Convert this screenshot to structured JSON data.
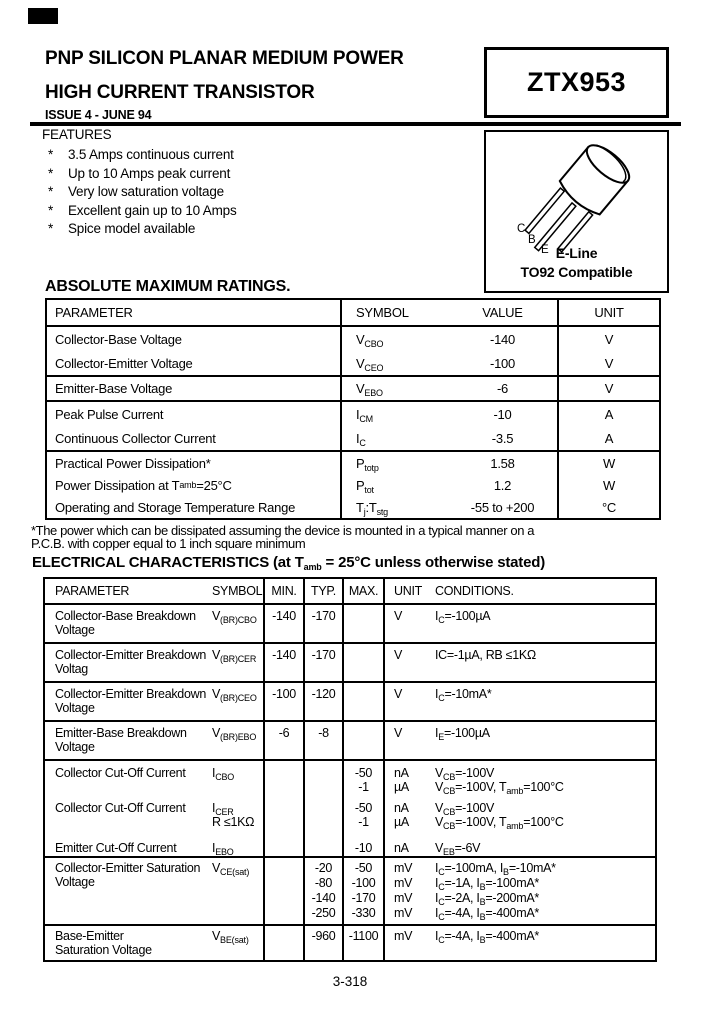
{
  "colors": {
    "ink": "#000000",
    "paper": "#ffffff"
  },
  "header": {
    "title_line1": "PNP SILICON PLANAR MEDIUM POWER",
    "title_line2": "HIGH CURRENT TRANSISTOR",
    "issue": "ISSUE 4 - JUNE 94",
    "part_number": "ZTX953"
  },
  "package_box": {
    "pin_c": "C",
    "pin_b": "B",
    "pin_e": "E",
    "line1": "E-Line",
    "line2": "TO92 Compatible"
  },
  "features": {
    "heading": "FEATURES",
    "bullet": "*",
    "items": [
      "3.5 Amps continuous current",
      "Up to 10 Amps peak current",
      "Very low saturation voltage",
      "Excellent gain up to 10 Amps",
      "Spice model available"
    ]
  },
  "amr": {
    "heading": "ABSOLUTE MAXIMUM RATINGS.",
    "col_parameter": "PARAMETER",
    "col_symbol": "SYMBOL",
    "col_value": "VALUE",
    "col_unit": "UNIT",
    "r1": {
      "param": "Collector-Base Voltage",
      "symbol": [
        "V",
        {
          "s": "CBO"
        }
      ],
      "value": "-140",
      "unit": "V"
    },
    "r2": {
      "param": "Collector-Emitter Voltage",
      "symbol": [
        "V",
        {
          "s": "CEO"
        }
      ],
      "value": "-100",
      "unit": "V"
    },
    "r3": {
      "param": "Emitter-Base Voltage",
      "symbol": [
        "V",
        {
          "s": "EBO"
        }
      ],
      "value": "-6",
      "unit": "V"
    },
    "r4": {
      "param": "Peak Pulse Current",
      "symbol": [
        "I",
        {
          "s": "CM"
        }
      ],
      "value": "-10",
      "unit": "A"
    },
    "r5": {
      "param": "Continuous Collector Current",
      "symbol": [
        "I",
        {
          "s": "C"
        }
      ],
      "value": "-3.5",
      "unit": "A"
    },
    "r6": {
      "param": "Practical Power Dissipation*",
      "symbol": [
        "P",
        {
          "s": "totp"
        }
      ],
      "value": "1.58",
      "unit": "W"
    },
    "r7": {
      "param": [
        "Power Dissipation at T",
        {
          "s": "amb"
        },
        "=25°C"
      ],
      "symbol": [
        "P",
        {
          "s": "tot"
        }
      ],
      "value": "1.2",
      "unit": "W"
    },
    "r8": {
      "param": "Operating and Storage Temperature Range",
      "symbol": [
        "T",
        {
          "s": "j"
        },
        ":T",
        {
          "s": "stg"
        }
      ],
      "value": "-55 to +200",
      "unit": "°C"
    },
    "footnote_line1": "*The power which can be dissipated assuming the device is mounted in a typical manner on a",
    "footnote_line2": "P.C.B. with copper equal to 1 inch square minimum"
  },
  "ec": {
    "heading": [
      "ELECTRICAL CHARACTERISTICS (at T",
      {
        "s": "amb"
      },
      " = 25°C unless otherwise stated)"
    ],
    "col_parameter": "PARAMETER",
    "col_symbol": "SYMBOL",
    "col_min": "MIN.",
    "col_typ": "TYP.",
    "col_max": "MAX.",
    "col_unit": "UNIT",
    "col_conditions": "CONDITIONS.",
    "r1": {
      "param1": "Collector-Base Breakdown",
      "param2": "Voltage",
      "symbol": [
        "V",
        {
          "s": "(BR)CBO"
        }
      ],
      "min": "-140",
      "typ": "-170",
      "max": "",
      "unit": "V",
      "cond": [
        "I",
        {
          "s": "C"
        },
        "=-100µA"
      ]
    },
    "r2": {
      "param1": "Collector-Emitter Breakdown",
      "param2": "Voltag",
      "symbol": [
        "V",
        {
          "s": "(BR)CER"
        }
      ],
      "min": "-140",
      "typ": "-170",
      "max": "",
      "unit": "V",
      "cond": [
        "IC=-1µA, RB ≤1KΩ"
      ]
    },
    "r3": {
      "param1": "Collector-Emitter Breakdown",
      "param2": "Voltage",
      "symbol": [
        "V",
        {
          "s": "(BR)CEO"
        }
      ],
      "min": "-100",
      "typ": "-120",
      "max": "",
      "unit": "V",
      "cond": [
        "I",
        {
          "s": "C"
        },
        "=-10mA*"
      ]
    },
    "r4": {
      "param1": "Emitter-Base Breakdown",
      "param2": "Voltage",
      "symbol": [
        "V",
        {
          "s": "(BR)EBO"
        }
      ],
      "min": "-6",
      "typ": "-8",
      "max": "",
      "unit": "V",
      "cond": [
        "I",
        {
          "s": "E"
        },
        "=-100µA"
      ]
    },
    "r5a": {
      "param": "Collector Cut-Off Current",
      "symbol": [
        "I",
        {
          "s": "CBO"
        }
      ],
      "max1": "-50",
      "max2": "-1",
      "unit1": "nA",
      "unit2": "µA",
      "cond1": [
        "V",
        {
          "s": "CB"
        },
        "=-100V"
      ],
      "cond2": [
        "V",
        {
          "s": "CB"
        },
        "=-100V, T",
        {
          "s": "amb"
        },
        "=100°C"
      ]
    },
    "r5b": {
      "param": "Collector Cut-Off Current",
      "symbol1": [
        "I",
        {
          "s": "CER"
        }
      ],
      "symbol2": "R ≤1KΩ",
      "max1": "-50",
      "max2": "-1",
      "unit1": "nA",
      "unit2": "µA",
      "cond1": [
        "V",
        {
          "s": "CB"
        },
        "=-100V"
      ],
      "cond2": [
        "V",
        {
          "s": "CB"
        },
        "=-100V, T",
        {
          "s": "amb"
        },
        "=100°C"
      ]
    },
    "r5c": {
      "param": "Emitter Cut-Off Current",
      "symbol": [
        "I",
        {
          "s": "EBO"
        }
      ],
      "max": "-10",
      "unit": "nA",
      "cond": [
        "V",
        {
          "s": "EB"
        },
        "=-6V"
      ]
    },
    "r6": {
      "param1": "Collector-Emitter Saturation",
      "param2": "Voltage",
      "symbol": [
        "V",
        {
          "s": "CE(sat)"
        }
      ],
      "typ1": "-20",
      "typ2": "-80",
      "typ3": "-140",
      "typ4": "-250",
      "max1": "-50",
      "max2": "-100",
      "max3": "-170",
      "max4": "-330",
      "unit1": "mV",
      "unit2": "mV",
      "unit3": "mV",
      "unit4": "mV",
      "cond1": [
        "I",
        {
          "s": "C"
        },
        "=-100mA, I",
        {
          "s": "B"
        },
        "=-10mA*"
      ],
      "cond2": [
        "I",
        {
          "s": "C"
        },
        "=-1A, I",
        {
          "s": "B"
        },
        "=-100mA*"
      ],
      "cond3": [
        "I",
        {
          "s": "C"
        },
        "=-2A, I",
        {
          "s": "B"
        },
        "=-200mA*"
      ],
      "cond4": [
        "I",
        {
          "s": "C"
        },
        "=-4A, I",
        {
          "s": "B"
        },
        "=-400mA*"
      ]
    },
    "r7": {
      "param1": "Base-Emitter",
      "param2": "Saturation Voltage",
      "symbol": [
        "V",
        {
          "s": "BE(sat)"
        }
      ],
      "typ": "-960",
      "max": "-1100",
      "unit": "mV",
      "cond": [
        "I",
        {
          "s": "C"
        },
        "=-4A, I",
        {
          "s": "B"
        },
        "=-400mA*"
      ]
    }
  },
  "footer": {
    "page_number": "3-318"
  }
}
